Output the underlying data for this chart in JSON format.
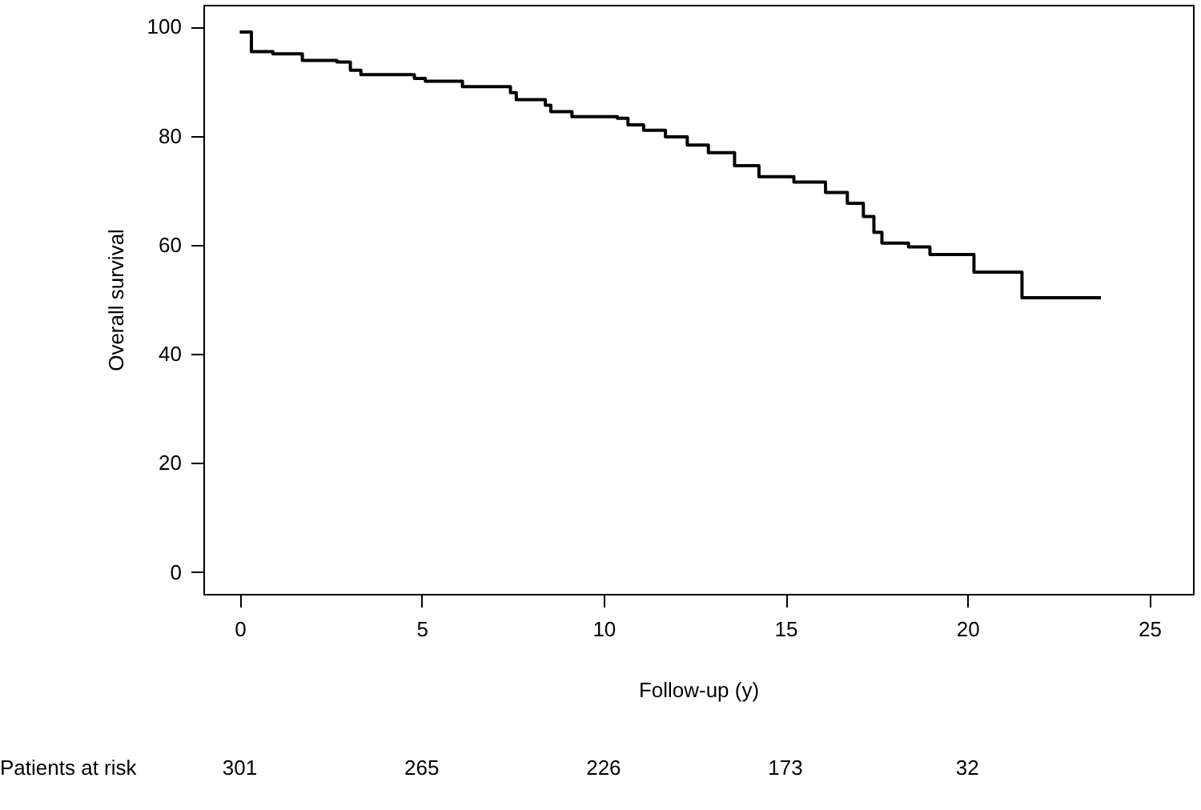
{
  "chart_data": {
    "type": "step",
    "xlabel": "Follow-up (y)",
    "ylabel": "Overall survival",
    "x": [
      0,
      0.32,
      0.91,
      1.72,
      2.67,
      3.04,
      3.33,
      4.8,
      5.1,
      6.12,
      7.44,
      7.6,
      8.4,
      8.55,
      9.13,
      10.38,
      10.67,
      11.1,
      11.7,
      12.3,
      12.88,
      13.6,
      14.27,
      15.23,
      16.1,
      16.7,
      17.14,
      17.43,
      17.65,
      18.38,
      18.97,
      20.18,
      21.5,
      23.67
    ],
    "series": [
      {
        "color": "#000000",
        "values": [
          99,
          95.4,
          95,
          93.8,
          93.5,
          92,
          91.2,
          90.5,
          90,
          89,
          87.9,
          86.6,
          85.6,
          84.4,
          83.5,
          83.2,
          82,
          81,
          79.8,
          78.3,
          76.9,
          74.5,
          72.5,
          71.5,
          69.6,
          67.6,
          65.2,
          62.3,
          60.3,
          59.6,
          58.2,
          55,
          50.3,
          50.3
        ]
      }
    ],
    "xlim": [
      -1,
      26.2
    ],
    "ylim": [
      -4,
      104
    ],
    "xticks": [
      0,
      5,
      10,
      15,
      20,
      25
    ],
    "yticks": [
      0,
      20,
      40,
      60,
      80,
      100
    ],
    "grid": false,
    "annotations": [
      "Patients at risk",
      "301",
      "265",
      "226",
      "173",
      "32"
    ]
  }
}
